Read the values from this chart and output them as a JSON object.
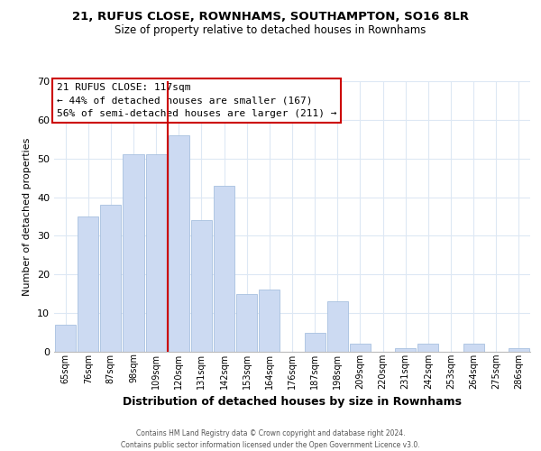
{
  "title": "21, RUFUS CLOSE, ROWNHAMS, SOUTHAMPTON, SO16 8LR",
  "subtitle": "Size of property relative to detached houses in Rownhams",
  "xlabel": "Distribution of detached houses by size in Rownhams",
  "ylabel": "Number of detached properties",
  "bar_labels": [
    "65sqm",
    "76sqm",
    "87sqm",
    "98sqm",
    "109sqm",
    "120sqm",
    "131sqm",
    "142sqm",
    "153sqm",
    "164sqm",
    "176sqm",
    "187sqm",
    "198sqm",
    "209sqm",
    "220sqm",
    "231sqm",
    "242sqm",
    "253sqm",
    "264sqm",
    "275sqm",
    "286sqm"
  ],
  "bar_values": [
    7,
    35,
    38,
    51,
    51,
    56,
    34,
    43,
    15,
    16,
    0,
    5,
    13,
    2,
    0,
    1,
    2,
    0,
    2,
    0,
    1
  ],
  "bar_color": "#ccdaf2",
  "bar_edge_color": "#a8c0e0",
  "vline_color": "#cc0000",
  "ylim": [
    0,
    70
  ],
  "yticks": [
    0,
    10,
    20,
    30,
    40,
    50,
    60,
    70
  ],
  "annotation_title": "21 RUFUS CLOSE: 117sqm",
  "annotation_line1": "← 44% of detached houses are smaller (167)",
  "annotation_line2": "56% of semi-detached houses are larger (211) →",
  "annotation_box_color": "#ffffff",
  "annotation_box_edge": "#cc0000",
  "footer_line1": "Contains HM Land Registry data © Crown copyright and database right 2024.",
  "footer_line2": "Contains public sector information licensed under the Open Government Licence v3.0.",
  "background_color": "#ffffff",
  "grid_color": "#dde8f4"
}
